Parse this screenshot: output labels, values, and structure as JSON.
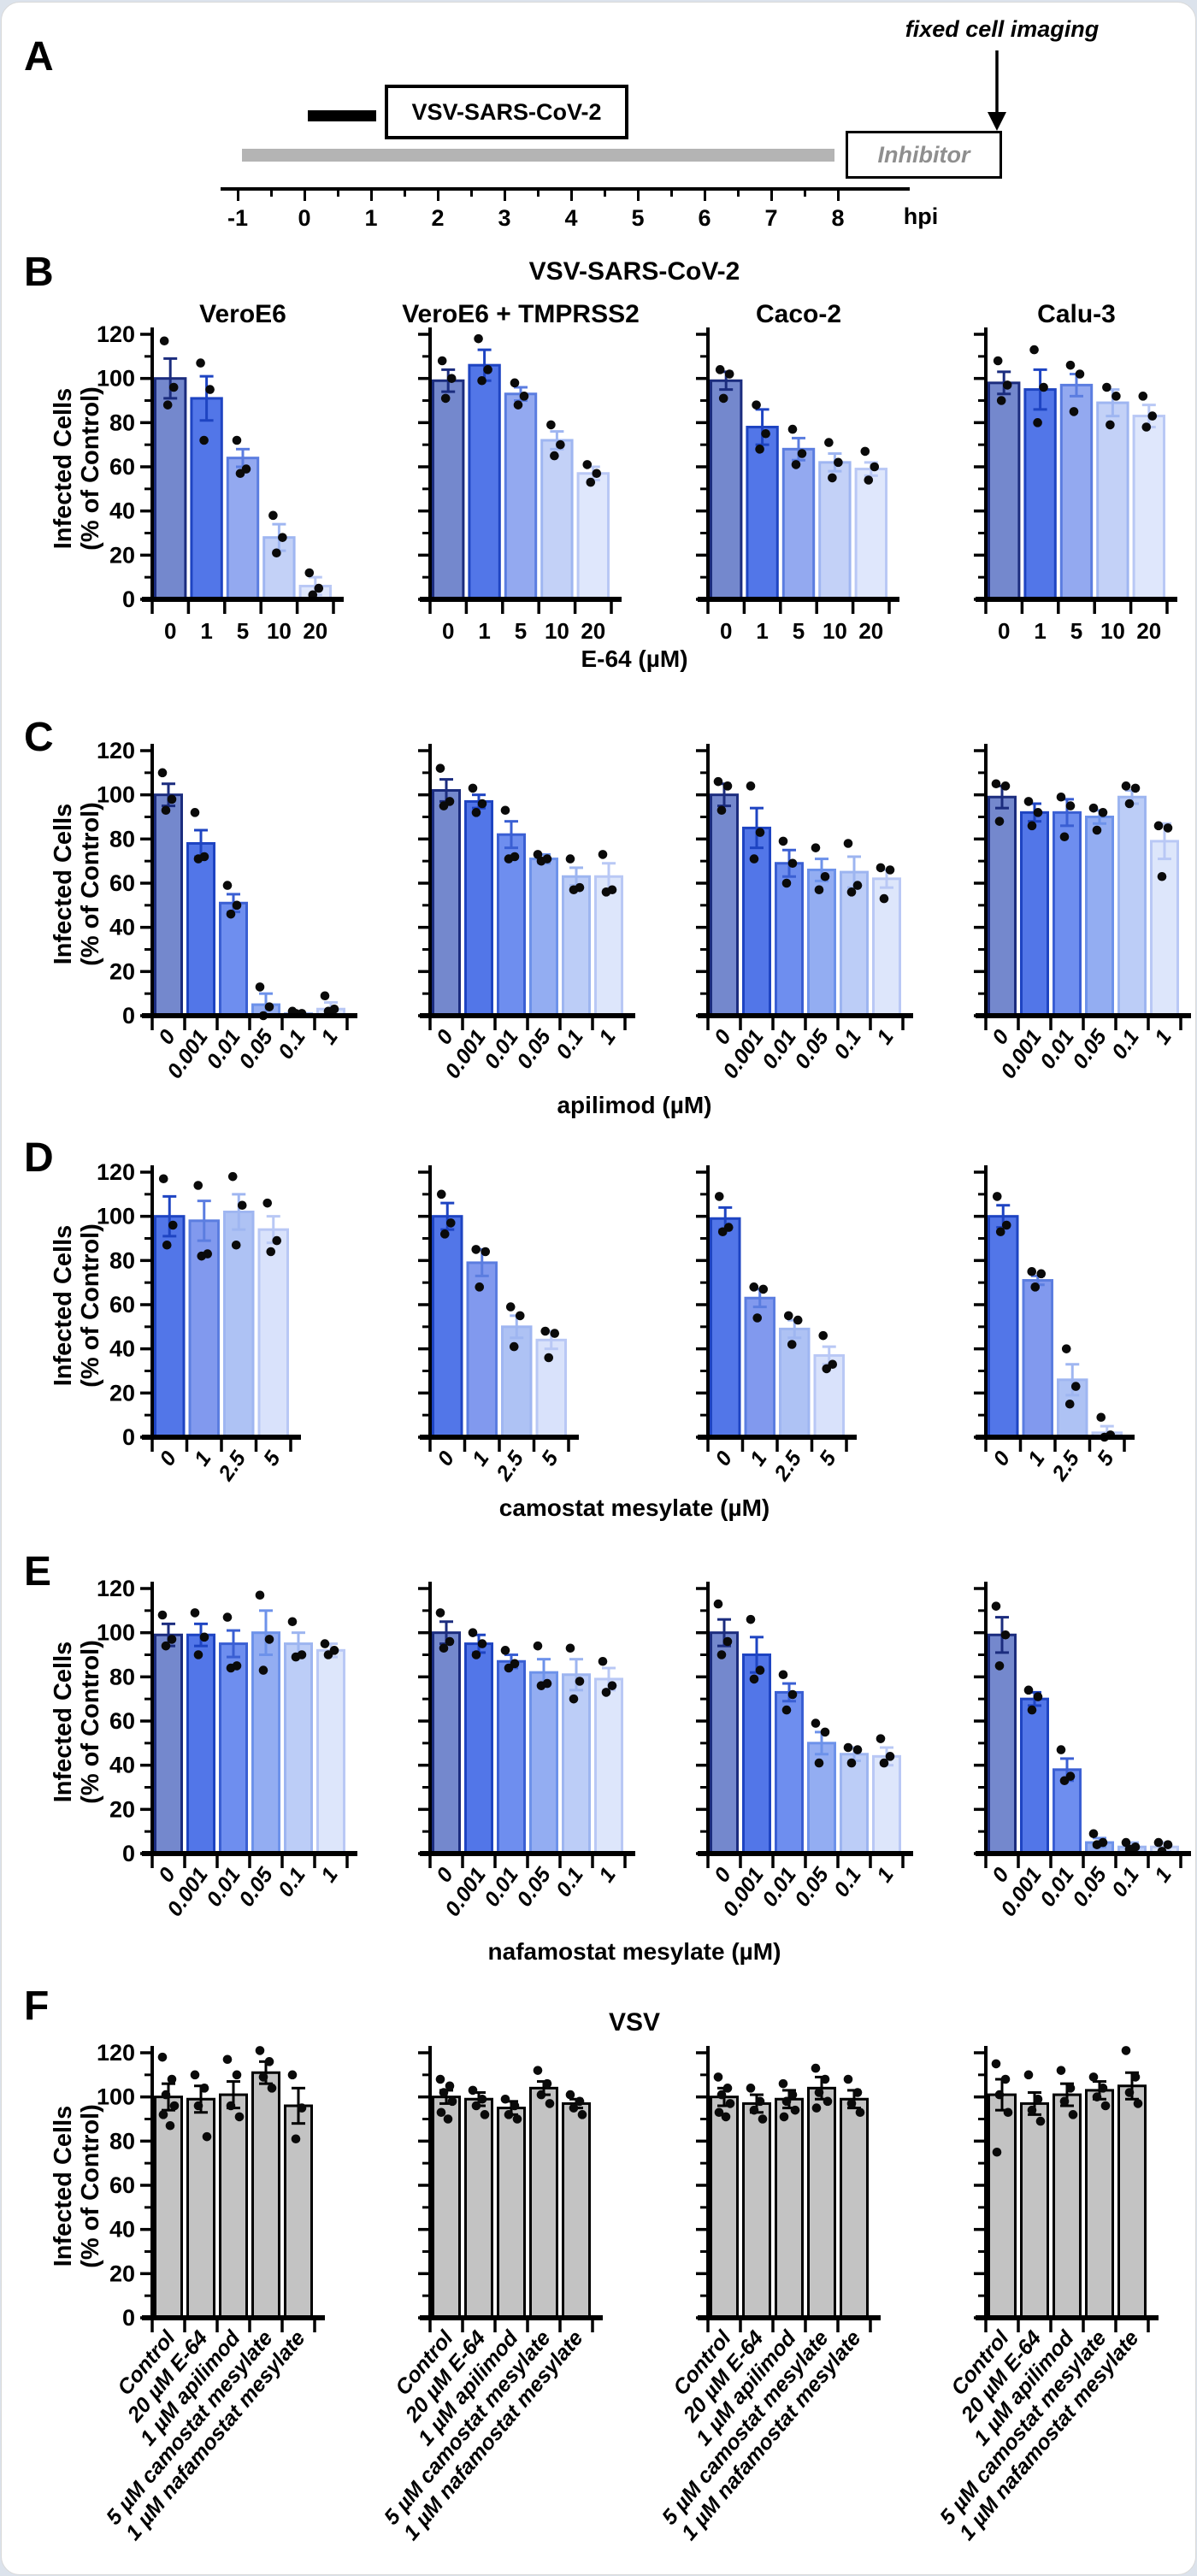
{
  "page": {
    "outer_background": "#dce3ec",
    "card_background": "#ffffff",
    "card_border": "#d9d9d9"
  },
  "panel_a": {
    "letter": "A",
    "annotation": "fixed cell imaging",
    "virus_label": "VSV-SARS-CoV-2",
    "inhibitor_label": "Inhibitor",
    "axis_unit": "hpi",
    "axis_ticks": [
      "-1",
      "0",
      "1",
      "2",
      "3",
      "4",
      "5",
      "6",
      "7",
      "8"
    ],
    "gray_bar_color": "#b4b4b4",
    "black_bar_color": "#000000",
    "inhibitor_text_color": "#8f8f8f"
  },
  "shared": {
    "y_label_line1": "Infected Cells",
    "y_label_line2": "(% of Control)",
    "y_ticks": [
      0,
      20,
      40,
      60,
      80,
      100,
      120
    ],
    "y_minor_ticks": [
      10,
      30,
      50,
      70,
      90,
      110
    ],
    "ylim": [
      0,
      120
    ],
    "cell_lines": [
      "VeroE6",
      "VeroE6 + TMPRSS2",
      "Caco-2",
      "Calu-3"
    ],
    "dot_color": "#0a0a0a"
  },
  "chart_data": [
    {
      "panel": "B",
      "type": "bar",
      "title": "VSV-SARS-CoV-2",
      "xlabel": "E-64 (µM)",
      "categories": [
        "0",
        "1",
        "5",
        "10",
        "20"
      ],
      "ylim": [
        0,
        120
      ],
      "bar_fills": [
        "#7488cd",
        "#5276e8",
        "#93a9f0",
        "#c3d1f7",
        "#dfe7fc"
      ],
      "bar_strokes": [
        "#1b2c7e",
        "#1e44c2",
        "#5b7de0",
        "#9fb6f1",
        "#b9c8f5"
      ],
      "series": [
        {
          "name": "VeroE6",
          "values": [
            100,
            91,
            64,
            28,
            6
          ],
          "errors": [
            9,
            10,
            4,
            6,
            4
          ],
          "points": [
            [
              117,
              96,
              88
            ],
            [
              107,
              95,
              72
            ],
            [
              72,
              59,
              57
            ],
            [
              38,
              28,
              21
            ],
            [
              12,
              5,
              2
            ]
          ]
        },
        {
          "name": "VeroE6 + TMPRSS2",
          "values": [
            99,
            106,
            93,
            72,
            57
          ],
          "errors": [
            5,
            7,
            3,
            4,
            3
          ],
          "points": [
            [
              108,
              100,
              91
            ],
            [
              118,
              104,
              99
            ],
            [
              98,
              92,
              88
            ],
            [
              79,
              70,
              65
            ],
            [
              61,
              57,
              53
            ]
          ]
        },
        {
          "name": "Caco-2",
          "values": [
            99,
            78,
            68,
            62,
            59
          ],
          "errors": [
            4,
            8,
            5,
            4,
            3
          ],
          "points": [
            [
              104,
              102,
              91
            ],
            [
              88,
              75,
              68
            ],
            [
              77,
              66,
              61
            ],
            [
              71,
              62,
              55
            ],
            [
              67,
              60,
              54
            ]
          ]
        },
        {
          "name": "Calu-3",
          "values": [
            98,
            95,
            97,
            89,
            83
          ],
          "errors": [
            5,
            9,
            5,
            6,
            5
          ],
          "points": [
            [
              108,
              97,
              90
            ],
            [
              113,
              96,
              80
            ],
            [
              106,
              102,
              85
            ],
            [
              96,
              92,
              79
            ],
            [
              92,
              83,
              78
            ]
          ]
        }
      ]
    },
    {
      "panel": "C",
      "type": "bar",
      "xlabel": "apilimod (µM)",
      "categories": [
        "0",
        "0.001",
        "0.01",
        "0.05",
        "0.1",
        "1"
      ],
      "ylim": [
        0,
        120
      ],
      "bar_fills": [
        "#7488cd",
        "#5276e8",
        "#6e8eef",
        "#93adf2",
        "#bccdf7",
        "#dde6fb"
      ],
      "bar_strokes": [
        "#1b2c7e",
        "#1e44c2",
        "#3a5fd3",
        "#6d92ea",
        "#9db5f0",
        "#b9c8f5"
      ],
      "series": [
        {
          "name": "VeroE6",
          "values": [
            100,
            78,
            51,
            5,
            1,
            3
          ],
          "errors": [
            5,
            6,
            4,
            5,
            1,
            3
          ],
          "points": [
            [
              110,
              98,
              93
            ],
            [
              92,
              72,
              71
            ],
            [
              59,
              50,
              46
            ],
            [
              13,
              4,
              0
            ],
            [
              2,
              1,
              1
            ],
            [
              9,
              3,
              2
            ]
          ]
        },
        {
          "name": "VeroE6 + TMPRSS2",
          "values": [
            102,
            97,
            82,
            71,
            63,
            63
          ],
          "errors": [
            5,
            3,
            6,
            2,
            4,
            6
          ],
          "points": [
            [
              112,
              97,
              95
            ],
            [
              103,
              96,
              92
            ],
            [
              93,
              72,
              71
            ],
            [
              73,
              71,
              70
            ],
            [
              71,
              58,
              57
            ],
            [
              73,
              57,
              56
            ]
          ]
        },
        {
          "name": "Caco-2",
          "values": [
            100,
            85,
            69,
            66,
            65,
            62
          ],
          "errors": [
            5,
            9,
            6,
            5,
            7,
            4
          ],
          "points": [
            [
              106,
              104,
              93
            ],
            [
              104,
              83,
              71
            ],
            [
              79,
              69,
              60
            ],
            [
              76,
              63,
              57
            ],
            [
              78,
              59,
              56
            ],
            [
              67,
              66,
              53
            ]
          ]
        },
        {
          "name": "Calu-3",
          "values": [
            99,
            92,
            92,
            90,
            99,
            79
          ],
          "errors": [
            5,
            4,
            6,
            3,
            3,
            8
          ],
          "points": [
            [
              105,
              104,
              88
            ],
            [
              97,
              92,
              86
            ],
            [
              99,
              95,
              81
            ],
            [
              94,
              92,
              84
            ],
            [
              104,
              103,
              96
            ],
            [
              86,
              85,
              63
            ]
          ]
        }
      ]
    },
    {
      "panel": "D",
      "type": "bar",
      "xlabel": "camostat mesylate (µM)",
      "categories": [
        "0",
        "1",
        "2.5",
        "5"
      ],
      "ylim": [
        0,
        120
      ],
      "bar_fills": [
        "#5276e8",
        "#8199ee",
        "#aec2f4",
        "#d9e2fb"
      ],
      "bar_strokes": [
        "#1e44c2",
        "#5b7de0",
        "#9fb6f1",
        "#b9c8f5"
      ],
      "series": [
        {
          "name": "VeroE6",
          "values": [
            100,
            98,
            102,
            94
          ],
          "errors": [
            9,
            9,
            8,
            6
          ],
          "points": [
            [
              117,
              96,
              87
            ],
            [
              114,
              83,
              82
            ],
            [
              118,
              105,
              87
            ],
            [
              106,
              89,
              84
            ]
          ]
        },
        {
          "name": "VeroE6 + TMPRSS2",
          "values": [
            100,
            79,
            50,
            44
          ],
          "errors": [
            6,
            6,
            5,
            4
          ],
          "points": [
            [
              110,
              97,
              92
            ],
            [
              85,
              84,
              68
            ],
            [
              59,
              55,
              41
            ],
            [
              48,
              47,
              36
            ]
          ]
        },
        {
          "name": "Caco-2",
          "values": [
            99,
            63,
            49,
            37
          ],
          "errors": [
            5,
            4,
            4,
            4
          ],
          "points": [
            [
              109,
              95,
              93
            ],
            [
              68,
              67,
              54
            ],
            [
              55,
              53,
              42
            ],
            [
              46,
              33,
              31
            ]
          ]
        },
        {
          "name": "Calu-3",
          "values": [
            100,
            71,
            26,
            2
          ],
          "errors": [
            5,
            2,
            7,
            3
          ],
          "points": [
            [
              109,
              96,
              93
            ],
            [
              75,
              74,
              68
            ],
            [
              40,
              23,
              15
            ],
            [
              9,
              1,
              0
            ]
          ]
        }
      ]
    },
    {
      "panel": "E",
      "type": "bar",
      "xlabel": "nafamostat mesylate (µM)",
      "categories": [
        "0",
        "0.001",
        "0.01",
        "0.05",
        "0.1",
        "1"
      ],
      "ylim": [
        0,
        120
      ],
      "bar_fills": [
        "#7488cd",
        "#5276e8",
        "#6e8eef",
        "#93adf2",
        "#bccdf7",
        "#dde6fb"
      ],
      "bar_strokes": [
        "#1b2c7e",
        "#1e44c2",
        "#3a5fd3",
        "#6d92ea",
        "#9db5f0",
        "#b9c8f5"
      ],
      "series": [
        {
          "name": "VeroE6",
          "values": [
            99,
            99,
            95,
            100,
            95,
            92
          ],
          "errors": [
            5,
            5,
            6,
            10,
            5,
            3
          ],
          "points": [
            [
              108,
              97,
              94
            ],
            [
              109,
              98,
              90
            ],
            [
              107,
              85,
              84
            ],
            [
              117,
              97,
              83
            ],
            [
              105,
              90,
              89
            ],
            [
              95,
              92,
              90
            ]
          ]
        },
        {
          "name": "VeroE6 + TMPRSS2",
          "values": [
            100,
            95,
            87,
            82,
            81,
            79
          ],
          "errors": [
            5,
            4,
            3,
            6,
            7,
            5
          ],
          "points": [
            [
              109,
              96,
              93
            ],
            [
              100,
              95,
              90
            ],
            [
              92,
              86,
              84
            ],
            [
              94,
              77,
              76
            ],
            [
              93,
              78,
              70
            ],
            [
              87,
              76,
              73
            ]
          ]
        },
        {
          "name": "Caco-2",
          "values": [
            100,
            90,
            73,
            50,
            45,
            44
          ],
          "errors": [
            6,
            8,
            4,
            5,
            3,
            4
          ],
          "points": [
            [
              113,
              96,
              90
            ],
            [
              106,
              83,
              79
            ],
            [
              81,
              72,
              65
            ],
            [
              59,
              55,
              41
            ],
            [
              48,
              47,
              41
            ],
            [
              52,
              44,
              41
            ]
          ]
        },
        {
          "name": "Calu-3",
          "values": [
            99,
            70,
            38,
            5,
            3,
            3
          ],
          "errors": [
            8,
            3,
            5,
            2,
            2,
            2
          ],
          "points": [
            [
              112,
              99,
              85
            ],
            [
              74,
              71,
              65
            ],
            [
              47,
              35,
              33
            ],
            [
              9,
              5,
              4
            ],
            [
              5,
              3,
              2
            ],
            [
              5,
              4,
              1
            ]
          ]
        }
      ]
    },
    {
      "panel": "F",
      "type": "bar",
      "title": "VSV",
      "xlabel": "",
      "categories": [
        "Control",
        "20 µM E-64",
        "1 µM apilimod",
        "5 µM camostat mesylate",
        "1 µM nafamostat mesylate"
      ],
      "ylim": [
        0,
        120
      ],
      "bar_fills": [
        "#c3c3c3",
        "#c3c3c3",
        "#c3c3c3",
        "#c3c3c3",
        "#c3c3c3"
      ],
      "bar_strokes": [
        "#000000",
        "#000000",
        "#000000",
        "#000000",
        "#000000"
      ],
      "series": [
        {
          "name": "VeroE6",
          "values": [
            100,
            99,
            101,
            111,
            96
          ],
          "errors": [
            6,
            6,
            6,
            5,
            8
          ],
          "points": [
            [
              118,
              108,
              101,
              96,
              92,
              87
            ],
            [
              110,
              104,
              96,
              82
            ],
            [
              117,
              110,
              96,
              91
            ],
            [
              121,
              116,
              109,
              104
            ],
            [
              110,
              95,
              81
            ]
          ]
        },
        {
          "name": "VeroE6 + TMPRSS2",
          "values": [
            100,
            99,
            95,
            104,
            97
          ],
          "errors": [
            3,
            3,
            3,
            3,
            2
          ],
          "points": [
            [
              108,
              105,
              102,
              98,
              93,
              90
            ],
            [
              103,
              99,
              96,
              92
            ],
            [
              99,
              96,
              92,
              90
            ],
            [
              112,
              106,
              101,
              97
            ],
            [
              101,
              98,
              95,
              92
            ]
          ]
        },
        {
          "name": "Caco-2",
          "values": [
            100,
            97,
            99,
            104,
            99
          ],
          "errors": [
            4,
            4,
            4,
            5,
            4
          ],
          "points": [
            [
              109,
              104,
              101,
              97,
              93,
              91
            ],
            [
              104,
              98,
              94,
              90
            ],
            [
              106,
              101,
              98,
              94,
              91
            ],
            [
              113,
              108,
              102,
              98,
              95
            ],
            [
              108,
              102,
              97,
              93
            ]
          ]
        },
        {
          "name": "Calu-3",
          "values": [
            101,
            97,
            101,
            103,
            105
          ],
          "errors": [
            7,
            5,
            5,
            4,
            6
          ],
          "points": [
            [
              115,
              108,
              101,
              93,
              75
            ],
            [
              110,
              99,
              94,
              89
            ],
            [
              112,
              104,
              98,
              92
            ],
            [
              109,
              104,
              100,
              96
            ],
            [
              121,
              109,
              102,
              97
            ]
          ]
        }
      ]
    }
  ]
}
